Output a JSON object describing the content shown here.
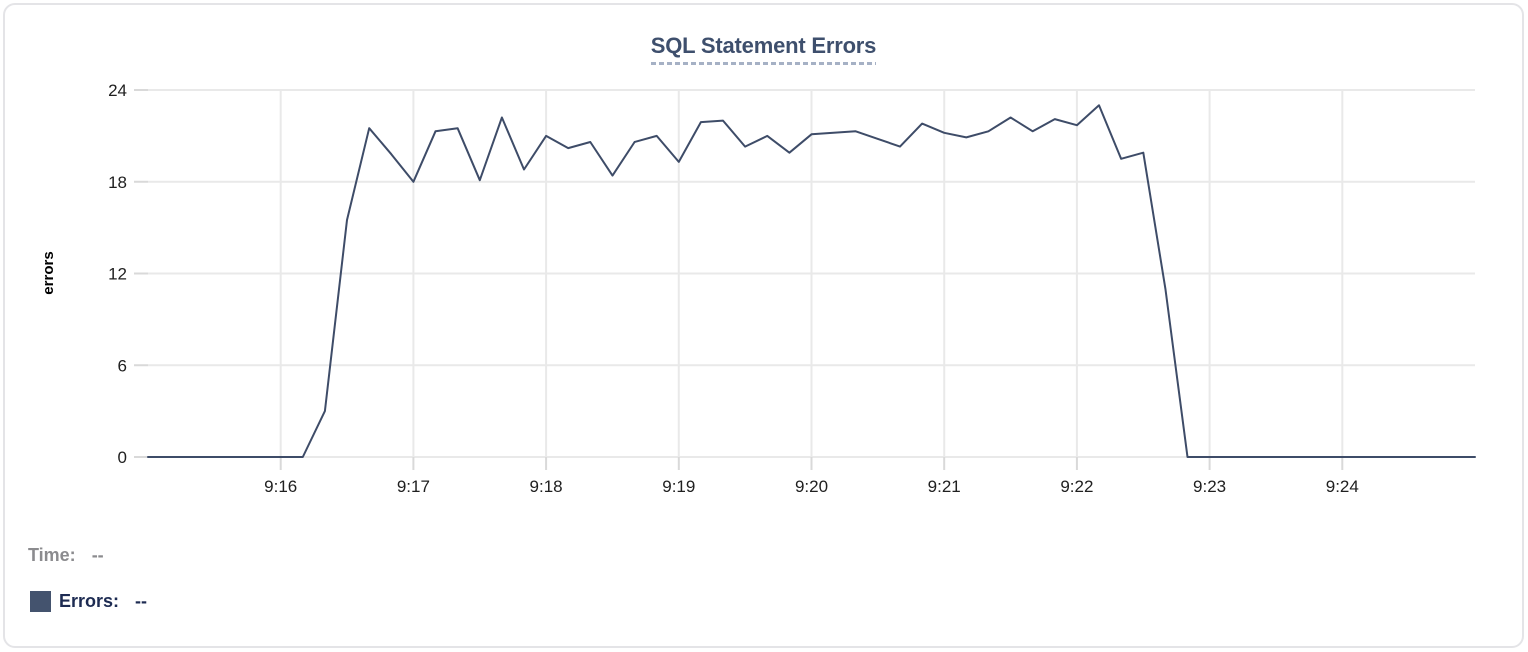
{
  "panel": {
    "title": "SQL Statement Errors"
  },
  "tooltip_legend": {
    "time_label": "Time:",
    "time_value": "--",
    "series_label": "Errors:",
    "series_value": "--"
  },
  "colors": {
    "line": "#3e4c68",
    "swatch": "#44536e",
    "title_text": "#3e4f6d",
    "title_underline": "#a6b1c5",
    "grid": "#e9e9e9",
    "tick_stub": "#d9d9d9",
    "axis_text": "#202020",
    "axis_title_text": "#000000",
    "legend_gray": "#8b8b8e",
    "legend_navy": "#1d2b52",
    "card_border": "#e4e4e7"
  },
  "chart_data": {
    "type": "line",
    "title": "SQL Statement Errors",
    "xlabel": "",
    "ylabel": "errors",
    "ylim": [
      0,
      24
    ],
    "yticks": [
      0,
      6,
      12,
      18,
      24
    ],
    "x_start": "9:15:00",
    "x_end": "9:25:00",
    "xtick_labels": [
      "9:16",
      "9:17",
      "9:18",
      "9:19",
      "9:20",
      "9:21",
      "9:22",
      "9:23",
      "9:24"
    ],
    "grid": true,
    "legend_position": "bottom-left",
    "series": [
      {
        "name": "Errors",
        "color": "#3e4c68",
        "points": [
          [
            "9:15:00",
            0
          ],
          [
            "9:15:10",
            0
          ],
          [
            "9:15:20",
            0
          ],
          [
            "9:15:30",
            0
          ],
          [
            "9:15:40",
            0
          ],
          [
            "9:15:50",
            0
          ],
          [
            "9:16:00",
            0
          ],
          [
            "9:16:10",
            0
          ],
          [
            "9:16:20",
            3
          ],
          [
            "9:16:30",
            15.5
          ],
          [
            "9:16:40",
            21.5
          ],
          [
            "9:16:50",
            19.8
          ],
          [
            "9:17:00",
            18
          ],
          [
            "9:17:10",
            21.3
          ],
          [
            "9:17:20",
            21.5
          ],
          [
            "9:17:30",
            18.1
          ],
          [
            "9:17:40",
            22.2
          ],
          [
            "9:17:50",
            18.8
          ],
          [
            "9:18:00",
            21
          ],
          [
            "9:18:10",
            20.2
          ],
          [
            "9:18:20",
            20.6
          ],
          [
            "9:18:30",
            18.4
          ],
          [
            "9:18:40",
            20.6
          ],
          [
            "9:18:50",
            21
          ],
          [
            "9:19:00",
            19.3
          ],
          [
            "9:19:10",
            21.9
          ],
          [
            "9:19:20",
            22
          ],
          [
            "9:19:30",
            20.3
          ],
          [
            "9:19:40",
            21
          ],
          [
            "9:19:50",
            19.9
          ],
          [
            "9:20:00",
            21.1
          ],
          [
            "9:20:10",
            21.2
          ],
          [
            "9:20:20",
            21.3
          ],
          [
            "9:20:30",
            20.8
          ],
          [
            "9:20:40",
            20.3
          ],
          [
            "9:20:50",
            21.8
          ],
          [
            "9:21:00",
            21.2
          ],
          [
            "9:21:10",
            20.9
          ],
          [
            "9:21:20",
            21.3
          ],
          [
            "9:21:30",
            22.2
          ],
          [
            "9:21:40",
            21.3
          ],
          [
            "9:21:50",
            22.1
          ],
          [
            "9:22:00",
            21.7
          ],
          [
            "9:22:10",
            23
          ],
          [
            "9:22:20",
            19.5
          ],
          [
            "9:22:30",
            19.9
          ],
          [
            "9:22:40",
            11
          ],
          [
            "9:22:50",
            0
          ],
          [
            "9:23:00",
            0
          ],
          [
            "9:23:10",
            0
          ],
          [
            "9:23:20",
            0
          ],
          [
            "9:23:30",
            0
          ],
          [
            "9:23:40",
            0
          ],
          [
            "9:23:50",
            0
          ],
          [
            "9:24:00",
            0
          ],
          [
            "9:24:10",
            0
          ],
          [
            "9:24:20",
            0
          ],
          [
            "9:24:30",
            0
          ],
          [
            "9:24:40",
            0
          ],
          [
            "9:24:50",
            0
          ],
          [
            "9:25:00",
            0
          ]
        ]
      }
    ]
  }
}
